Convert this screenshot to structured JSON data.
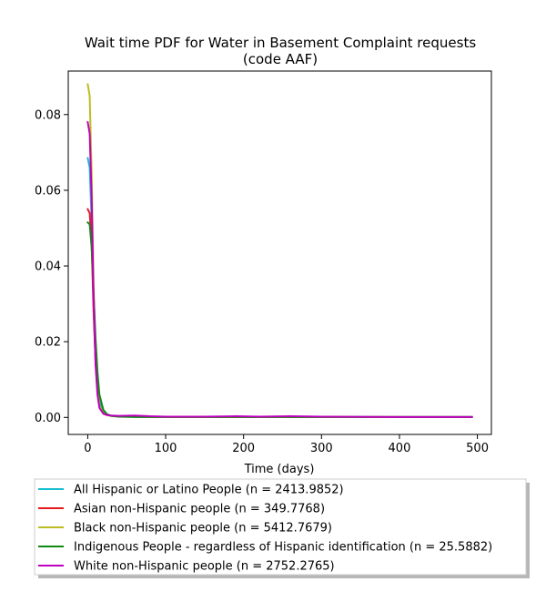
{
  "chart_data": {
    "type": "line",
    "title": "Wait time PDF for Water in Basement Complaint  requests",
    "subtitle": "(code AAF)",
    "xlabel": "Time (days)",
    "ylabel": "",
    "xlim": [
      -25,
      518
    ],
    "ylim": [
      -0.0045,
      0.0915
    ],
    "x_ticks": [
      0,
      100,
      200,
      300,
      400,
      500
    ],
    "x_tick_labels": [
      "0",
      "100",
      "200",
      "300",
      "400",
      "500"
    ],
    "y_ticks": [
      0.0,
      0.02,
      0.04,
      0.06,
      0.08
    ],
    "y_tick_labels": [
      "0.00",
      "0.02",
      "0.04",
      "0.06",
      "0.08"
    ],
    "grid": false,
    "legend_placement": "below-plot",
    "series": [
      {
        "name": "All Hispanic or Latino People (n = 2413.9852)",
        "color": "#17becf",
        "x": [
          0,
          2.5,
          5,
          7.5,
          10,
          12.5,
          15,
          20,
          25,
          30,
          40,
          60,
          100,
          200,
          300,
          400,
          493
        ],
        "y": [
          0.0685,
          0.066,
          0.052,
          0.03,
          0.016,
          0.008,
          0.004,
          0.0015,
          0.0008,
          0.0005,
          0.0003,
          0.0002,
          0.0001,
          0.0001,
          0.0001,
          0.0001,
          0.0001
        ]
      },
      {
        "name": "Asian non-Hispanic people (n = 349.7768)",
        "color": "#e41a1c",
        "x": [
          0,
          2.5,
          5,
          7.5,
          10,
          12.5,
          15,
          20,
          25,
          30,
          40,
          60,
          100,
          200,
          300,
          400,
          493
        ],
        "y": [
          0.055,
          0.054,
          0.046,
          0.028,
          0.015,
          0.007,
          0.003,
          0.001,
          0.0006,
          0.0004,
          0.0003,
          0.0002,
          0.0001,
          0.0001,
          0.0001,
          0.0001,
          0.0001
        ]
      },
      {
        "name": "Black non-Hispanic people (n = 5412.7679)",
        "color": "#bcbd22",
        "x": [
          0,
          2.5,
          5,
          7.5,
          10,
          12.5,
          15,
          20,
          25,
          30,
          40,
          60,
          100,
          200,
          300,
          400,
          493
        ],
        "y": [
          0.088,
          0.085,
          0.065,
          0.035,
          0.016,
          0.007,
          0.003,
          0.001,
          0.0006,
          0.0004,
          0.0003,
          0.0002,
          0.0001,
          0.0001,
          0.0001,
          0.0001,
          0.0001
        ]
      },
      {
        "name": "Indigenous People - regardless of Hispanic identification (n = 25.5882)",
        "color": "#108a10",
        "x": [
          0,
          2.5,
          5,
          7.5,
          10,
          12.5,
          15,
          20,
          25,
          30,
          40,
          60,
          100,
          200,
          300,
          400,
          493
        ],
        "y": [
          0.0515,
          0.051,
          0.045,
          0.033,
          0.021,
          0.012,
          0.006,
          0.002,
          0.0008,
          0.0004,
          0.0002,
          0.0001,
          0.0001,
          0.0001,
          0.0001,
          0.0001,
          0.0001
        ]
      },
      {
        "name": "White non-Hispanic people (n = 2752.2765)",
        "color": "#bf00bf",
        "x": [
          0,
          2.5,
          5,
          7.5,
          10,
          12.5,
          15,
          20,
          25,
          30,
          40,
          60,
          80,
          100,
          150,
          190,
          220,
          260,
          300,
          400,
          493
        ],
        "y": [
          0.078,
          0.075,
          0.058,
          0.032,
          0.014,
          0.006,
          0.0025,
          0.001,
          0.0006,
          0.0005,
          0.0004,
          0.0005,
          0.0003,
          0.0002,
          0.0002,
          0.0003,
          0.0002,
          0.0003,
          0.0002,
          0.0001,
          0.0001
        ]
      }
    ]
  }
}
